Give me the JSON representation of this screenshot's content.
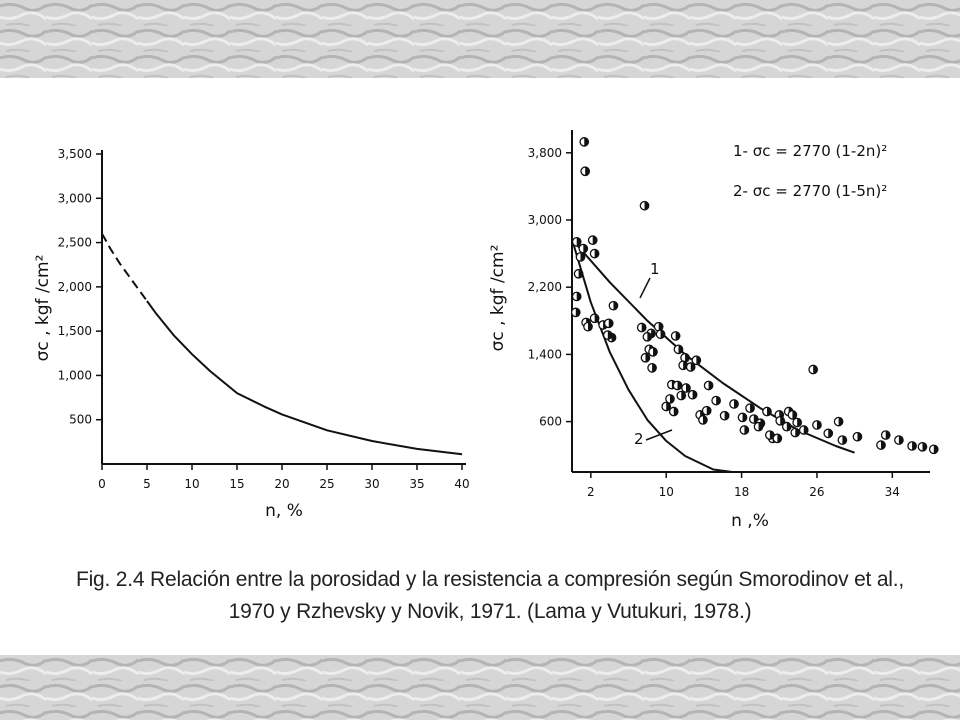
{
  "caption": {
    "line1": "Fig. 2.4 Relación entre la porosidad y la resistencia a compresión según Smorodinov et  al.,",
    "line2": "1970 y Rzhevsky y Novik, 1971. (Lama y Vutukuri, 1978.)"
  },
  "colors": {
    "background": "#ffffff",
    "ink": "#111111",
    "frame_texture": "#d8d8d8"
  },
  "chart_data": [
    {
      "type": "line",
      "xlabel": "n, %",
      "ylabel": "σc , kgf /cm²",
      "xlim": [
        0,
        40
      ],
      "ylim": [
        0,
        3500
      ],
      "x_ticks": [
        "0",
        "5",
        "10",
        "15",
        "20",
        "25",
        "30",
        "35",
        "40"
      ],
      "y_ticks": [
        "500",
        "1,000",
        "1,500",
        "2,000",
        "2,500",
        "3,000",
        "3,500"
      ],
      "series": [
        {
          "style": "dashed",
          "x": [
            0,
            1,
            2,
            3,
            4,
            5
          ],
          "y": [
            2600,
            2420,
            2260,
            2120,
            1980,
            1840
          ]
        },
        {
          "style": "solid",
          "x": [
            5,
            6,
            8,
            10,
            12,
            15,
            18,
            20,
            25,
            30,
            35,
            40
          ],
          "y": [
            1840,
            1700,
            1450,
            1240,
            1050,
            800,
            650,
            560,
            380,
            260,
            170,
            110
          ]
        }
      ]
    },
    {
      "type": "scatter",
      "xlabel": "n ,%",
      "ylabel": "σc , kgf /cm²",
      "xlim": [
        0,
        38
      ],
      "ylim": [
        0,
        4000
      ],
      "x_ticks": [
        "2",
        "10",
        "18",
        "26",
        "34"
      ],
      "y_ticks": [
        "600",
        "1,400",
        "2,200",
        "3,000",
        "3,800"
      ],
      "equations": [
        "1- σc = 2770 (1-2n)²",
        "2- σc = 2770 (1-5n)²"
      ],
      "curve_labels": [
        "1",
        "2"
      ],
      "series": [
        {
          "label": "1",
          "x": [
            0,
            4,
            8,
            12,
            16,
            20,
            24,
            28,
            30
          ],
          "y": [
            2770,
            2260,
            1800,
            1400,
            1060,
            760,
            500,
            310,
            230
          ]
        },
        {
          "label": "2",
          "x": [
            0,
            2,
            4,
            6,
            8,
            10,
            12,
            15,
            17
          ],
          "y": [
            2770,
            2020,
            1430,
            980,
            620,
            370,
            190,
            30,
            0
          ]
        }
      ],
      "points": {
        "x": [
          1.3,
          1.4,
          0.5,
          1.2,
          0.9,
          0.7,
          0.5,
          2.2,
          2.4,
          7.7,
          0.4,
          1.5,
          1.7,
          2.4,
          3.3,
          3.9,
          4.2,
          3.8,
          4.4,
          7.4,
          8.4,
          9.2,
          8.2,
          8.0,
          7.8,
          8.6,
          8.5,
          9.4,
          11.0,
          11.3,
          12.0,
          13.2,
          11.8,
          12.6,
          10.6,
          11.2,
          14.5,
          10.4,
          10.0,
          10.8,
          11.6,
          12.1,
          12.8,
          13.6,
          14.3,
          13.9,
          15.3,
          16.2,
          17.2,
          18.1,
          18.3,
          19.3,
          18.9,
          20.0,
          20.7,
          19.8,
          22.0,
          21.3,
          22.1,
          21.0,
          21.8,
          23.0,
          23.9,
          23.4,
          22.8,
          24.6,
          23.7,
          25.6,
          26.0,
          27.2,
          28.3,
          28.7,
          30.3,
          32.8,
          33.3,
          34.7,
          36.1,
          37.2,
          38.4
        ],
        "y": [
          3930,
          3580,
          2740,
          2660,
          2560,
          2360,
          2090,
          2760,
          2600,
          3170,
          1900,
          1780,
          1730,
          1830,
          1750,
          1770,
          1600,
          1630,
          1980,
          1720,
          1650,
          1730,
          1460,
          1610,
          1360,
          1430,
          1240,
          1640,
          1620,
          1460,
          1360,
          1330,
          1270,
          1250,
          1040,
          1030,
          1030,
          870,
          780,
          720,
          910,
          1000,
          920,
          680,
          730,
          620,
          850,
          670,
          810,
          650,
          500,
          630,
          760,
          580,
          720,
          540,
          680,
          400,
          610,
          440,
          400,
          720,
          590,
          680,
          540,
          500,
          470,
          1220,
          560,
          460,
          600,
          380,
          420,
          320,
          440,
          380,
          310,
          300,
          270
        ]
      }
    }
  ]
}
